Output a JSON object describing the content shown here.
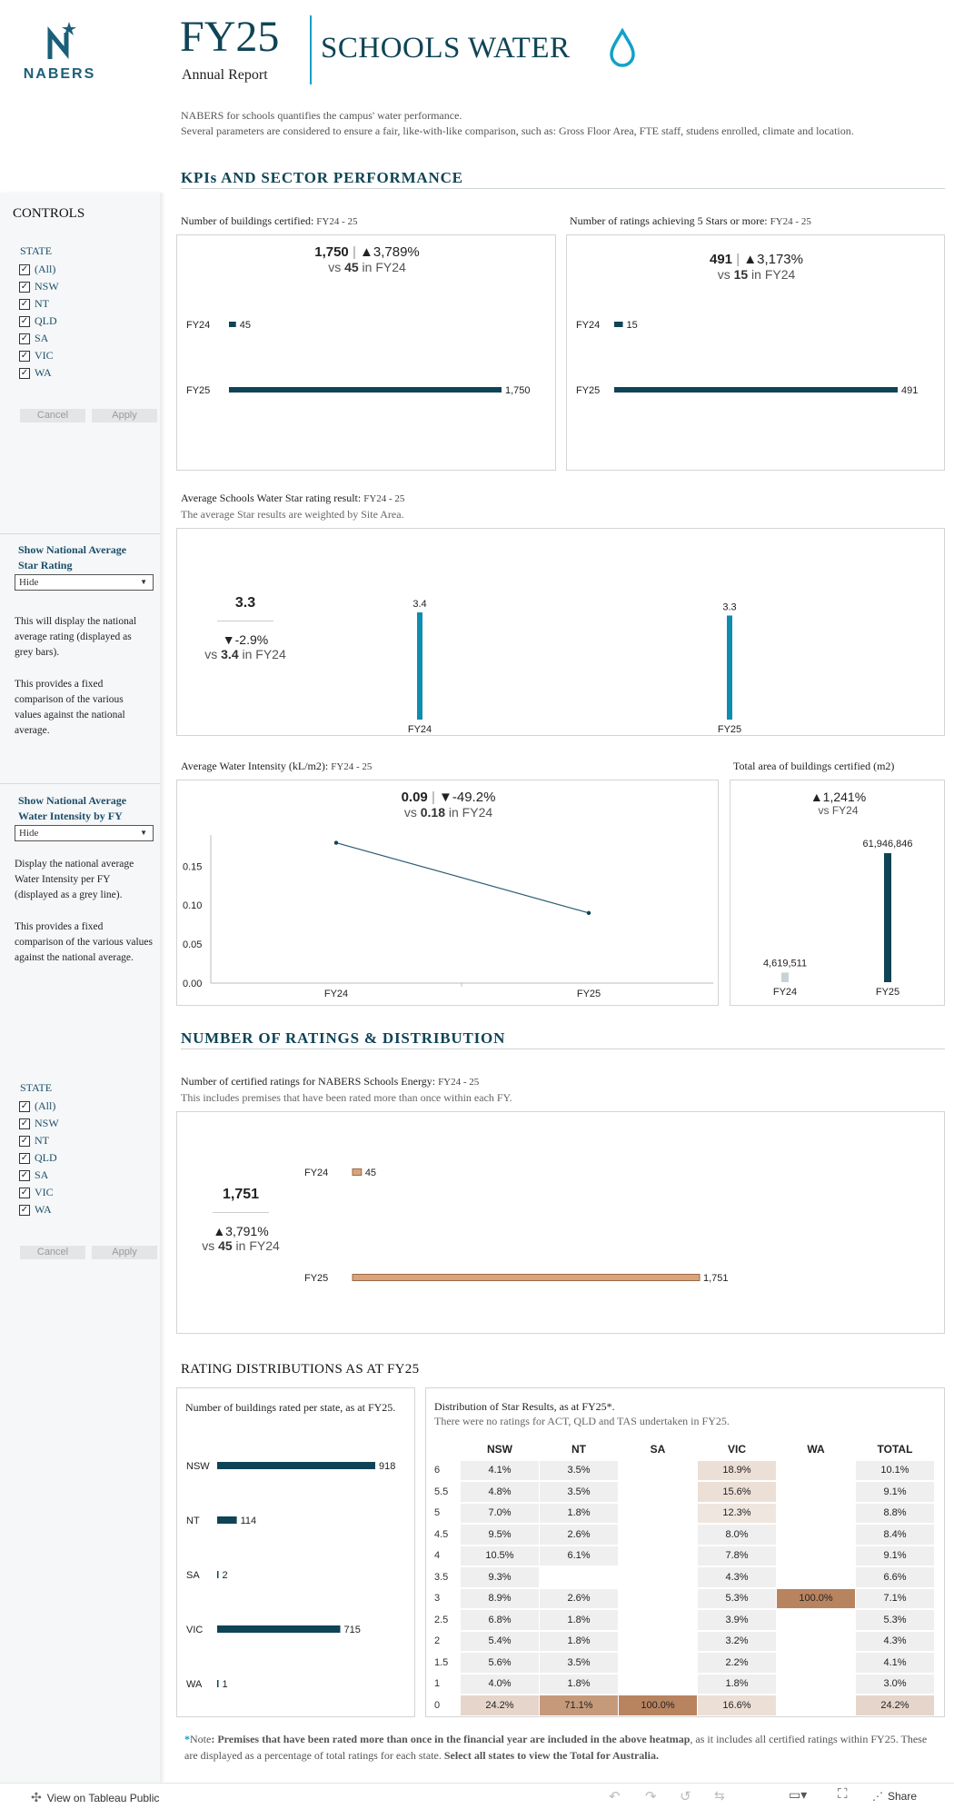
{
  "header": {
    "logo_text": "NABERS",
    "fy": "FY25",
    "subtitle": "Annual Report",
    "title": "SCHOOLS WATER",
    "intro1": "NABERS for schools quantifies the campus' water performance.",
    "intro2": "Several parameters are considered to ensure a fair, like-with-like comparison, such as: Gross Floor Area, FTE staff, studens enrolled, climate and location."
  },
  "colors": {
    "accent": "#0f4456",
    "cyan": "#12a1c8",
    "water": "#0e8db0",
    "tan": "#d9a47c"
  },
  "sidebar": {
    "controls_title": "CONTROLS",
    "state_label": "STATE",
    "states": [
      "(All)",
      "NSW",
      "NT",
      "QLD",
      "SA",
      "VIC",
      "WA"
    ],
    "cancel": "Cancel",
    "apply": "Apply",
    "nat_star_title": "Show National Average Star Rating",
    "nat_star_value": "Hide",
    "nat_star_desc1": "This will display the national average rating (displayed as grey bars).",
    "nat_star_desc2": "This provides a fixed comparison of the various values against the national average.",
    "nat_int_title": "Show National Average Water Intensity by FY",
    "nat_int_value": "Hide",
    "nat_int_desc1": "Display the national average Water Intensity per FY (displayed as a grey line).",
    "nat_int_desc2": "This provides a fixed comparison of the various values against the national average."
  },
  "kpi_section": {
    "title": "KPIs AND SECTOR PERFORMANCE",
    "certified": {
      "label": "Number of buildings certified:",
      "period": "FY24 - 25",
      "value": "1,750",
      "change": "▲3,789%",
      "vs_pre": "vs",
      "vs_val": "45",
      "vs_post": "in FY24",
      "rows": [
        {
          "fy": "FY24",
          "value": 45,
          "label": "45"
        },
        {
          "fy": "FY25",
          "value": 1750,
          "label": "1,750"
        }
      ]
    },
    "five_star": {
      "label": "Number of ratings achieving 5 Stars or more:",
      "period": "FY24 - 25",
      "value": "491",
      "change": "▲3,173%",
      "vs_pre": "vs",
      "vs_val": "15",
      "vs_post": "in FY24",
      "rows": [
        {
          "fy": "FY24",
          "value": 15,
          "label": "15"
        },
        {
          "fy": "FY25",
          "value": 491,
          "label": "491"
        }
      ]
    },
    "avg_star": {
      "label": "Average Schools Water Star rating result:",
      "period": "FY24 - 25",
      "note": "The average Star results are weighted by Site Area.",
      "value": "3.3",
      "change": "▼-2.9%",
      "vs_pre": "vs",
      "vs_val": "3.4",
      "vs_post": "in FY24",
      "bars": [
        {
          "fy": "FY24",
          "value": 3.4,
          "label": "3.4"
        },
        {
          "fy": "FY25",
          "value": 3.3,
          "label": "3.3"
        }
      ]
    },
    "intensity": {
      "label": "Average Water Intensity (kL/m2):",
      "period": "FY24 - 25",
      "value": "0.09",
      "change": "▼-49.2%",
      "vs_pre": "vs",
      "vs_val": "0.18",
      "vs_post": "in FY24",
      "ticks": [
        "0.15",
        "0.10",
        "0.05",
        "0.00"
      ]
    },
    "area": {
      "label": "Total area of buildings certified (m2)",
      "change": "▲1,241%",
      "vs": "vs FY24",
      "bars": [
        {
          "fy": "FY24",
          "value": 4619511,
          "label": "4,619,511"
        },
        {
          "fy": "FY25",
          "value": 61946846,
          "label": "61,946,846"
        }
      ]
    }
  },
  "chart_data": [
    {
      "type": "bar",
      "title": "Number of buildings certified",
      "categories": [
        "FY24",
        "FY25"
      ],
      "values": [
        45,
        1750
      ]
    },
    {
      "type": "bar",
      "title": "Number of ratings achieving 5 Stars or more",
      "categories": [
        "FY24",
        "FY25"
      ],
      "values": [
        15,
        491
      ]
    },
    {
      "type": "bar",
      "title": "Average Schools Water Star rating result",
      "categories": [
        "FY24",
        "FY25"
      ],
      "values": [
        3.4,
        3.3
      ]
    },
    {
      "type": "line",
      "title": "Average Water Intensity (kL/m2)",
      "x": [
        "FY24",
        "FY25"
      ],
      "y": [
        0.18,
        0.09
      ],
      "ylim": [
        0,
        0.19
      ]
    },
    {
      "type": "bar",
      "title": "Total area of buildings certified (m2)",
      "categories": [
        "FY24",
        "FY25"
      ],
      "values": [
        4619511,
        61946846
      ]
    },
    {
      "type": "bar",
      "title": "Number of certified ratings for NABERS Schools Energy",
      "categories": [
        "FY24",
        "FY25"
      ],
      "values": [
        45,
        1751
      ]
    },
    {
      "type": "bar",
      "title": "Number of buildings rated per state, as at FY25",
      "categories": [
        "NSW",
        "NT",
        "SA",
        "VIC",
        "WA"
      ],
      "values": [
        918,
        114,
        2,
        715,
        1
      ]
    }
  ],
  "ratings_section": {
    "title": "NUMBER OF RATINGS & DISTRIBUTION",
    "label": "Number of certified ratings for NABERS Schools Energy:",
    "period": "FY24 - 25",
    "note": "This includes premises that have been rated more than once within each FY.",
    "value": "1,751",
    "change": "▲3,791%",
    "vs_pre": "vs",
    "vs_val": "45",
    "vs_post": "in FY24",
    "rows": [
      {
        "fy": "FY24",
        "value": 45,
        "label": "45"
      },
      {
        "fy": "FY25",
        "value": 1751,
        "label": "1,751"
      }
    ]
  },
  "distribution": {
    "title": "RATING DISTRIBUTIONS AS AT FY25",
    "state_label": "Number of buildings rated per state, as at FY25.",
    "states": [
      {
        "name": "NSW",
        "value": 918,
        "label": "918"
      },
      {
        "name": "NT",
        "value": 114,
        "label": "114"
      },
      {
        "name": "SA",
        "value": 2,
        "label": "2"
      },
      {
        "name": "VIC",
        "value": 715,
        "label": "715"
      },
      {
        "name": "WA",
        "value": 1,
        "label": "1"
      }
    ],
    "heat_label": "Distribution of Star Results, as at FY25*.",
    "heat_note": "There were no ratings for ACT, QLD and TAS undertaken in FY25.",
    "columns": [
      "NSW",
      "NT",
      "SA",
      "VIC",
      "WA",
      "TOTAL"
    ],
    "rows": [
      {
        "star": "6",
        "cells": [
          "4.1%",
          "3.5%",
          "",
          "18.9%",
          "",
          "10.1%"
        ]
      },
      {
        "star": "5.5",
        "cells": [
          "4.8%",
          "3.5%",
          "",
          "15.6%",
          "",
          "9.1%"
        ]
      },
      {
        "star": "5",
        "cells": [
          "7.0%",
          "1.8%",
          "",
          "12.3%",
          "",
          "8.8%"
        ]
      },
      {
        "star": "4.5",
        "cells": [
          "9.5%",
          "2.6%",
          "",
          "8.0%",
          "",
          "8.4%"
        ]
      },
      {
        "star": "4",
        "cells": [
          "10.5%",
          "6.1%",
          "",
          "7.8%",
          "",
          "9.1%"
        ]
      },
      {
        "star": "3.5",
        "cells": [
          "9.3%",
          "",
          "",
          "4.3%",
          "",
          "6.6%"
        ]
      },
      {
        "star": "3",
        "cells": [
          "8.9%",
          "2.6%",
          "",
          "5.3%",
          "100.0%",
          "7.1%"
        ]
      },
      {
        "star": "2.5",
        "cells": [
          "6.8%",
          "1.8%",
          "",
          "3.9%",
          "",
          "5.3%"
        ]
      },
      {
        "star": "2",
        "cells": [
          "5.4%",
          "1.8%",
          "",
          "3.2%",
          "",
          "4.3%"
        ]
      },
      {
        "star": "1.5",
        "cells": [
          "5.6%",
          "3.5%",
          "",
          "2.2%",
          "",
          "4.1%"
        ]
      },
      {
        "star": "1",
        "cells": [
          "4.0%",
          "1.8%",
          "",
          "1.8%",
          "",
          "3.0%"
        ]
      },
      {
        "star": "0",
        "cells": [
          "24.2%",
          "71.1%",
          "100.0%",
          "16.6%",
          "",
          "24.2%"
        ]
      }
    ],
    "note_star": "*",
    "note_intro": "Note",
    "note_bold1": ": Premises that have been rated more than once in the financial year are included in the above heatmap",
    "note_mid": ", as it includes all certified ratings within FY25. These are displayed as a percentage of total ratings for each state. ",
    "note_bold2": "Select all states to view the Total for Australia."
  },
  "footer": {
    "view_label": "View on Tableau Public",
    "share": "Share"
  }
}
